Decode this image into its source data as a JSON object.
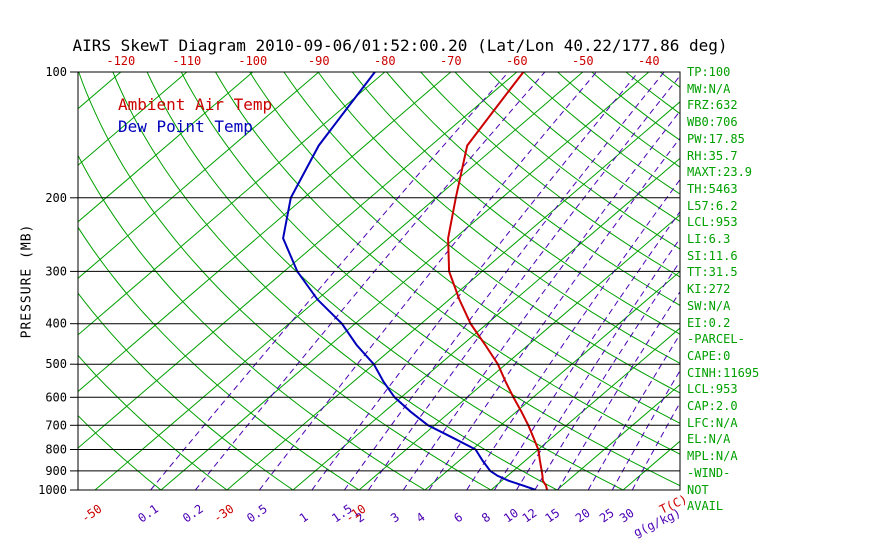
{
  "title": "AIRS SkewT Diagram 2010-09-06/01:52:00.20 (Lat/Lon 40.22/177.86 deg)",
  "legend": {
    "temp_label": "Ambient Air Temp",
    "dew_label": "Dew Point Temp"
  },
  "stats": {
    "items": [
      "TP:100",
      "MW:N/A",
      "FRZ:632",
      "WB0:706",
      "PW:17.85",
      "RH:35.7",
      "MAXT:23.9",
      "TH:5463",
      "L57:6.2",
      "LCL:953",
      "LI:6.3",
      "SI:11.6",
      "TT:31.5",
      "KI:272",
      "SW:N/A",
      "EI:0.2",
      "-PARCEL-",
      "CAPE:0",
      "CINH:11695",
      "LCL:953",
      "CAP:2.0",
      "LFC:N/A",
      "EL:N/A",
      "MPL:N/A",
      "-WIND-",
      "NOT",
      "AVAIL"
    ]
  },
  "colors": {
    "grid_green": "#00a000",
    "mixing_purple": "#4b00b4",
    "temp_red": "#cc0000",
    "dew_blue": "#0000bb",
    "axis_black": "#000000"
  },
  "chart_data": {
    "type": "line",
    "title": "AIRS SkewT Diagram 2010-09-06/01:52:00.20 (Lat/Lon 40.22/177.86 deg)",
    "y_axis": {
      "label": "PRESSURE (MB)",
      "scale": "log",
      "range_mb": [
        100,
        1000
      ],
      "ticks_mb": [
        100,
        200,
        300,
        400,
        500,
        600,
        700,
        800,
        900,
        1000
      ]
    },
    "x_axis": {
      "label": "T(C)",
      "top_tick_temps_c": [
        -120,
        -110,
        -100,
        -90,
        -80,
        -70,
        -60,
        -50,
        -40
      ],
      "bottom_tick_temps_c": [
        -50,
        -30,
        -10
      ]
    },
    "mixing_ratio": {
      "label": "g(g/kg)",
      "values_g_kg": [
        0.1,
        0.2,
        0.5,
        1,
        1.5,
        2,
        3,
        4,
        6,
        8,
        10,
        12,
        15,
        20,
        25,
        30
      ]
    },
    "isotherms_c": {
      "start": -130,
      "end": 40,
      "step": 10
    },
    "dry_adiabats_c": {
      "start": -40,
      "end": 200,
      "step": 10
    },
    "series": [
      {
        "name": "Ambient Air Temp",
        "color_key": "temp_red",
        "points_p_t": [
          [
            1000,
            18.5
          ],
          [
            975,
            17.5
          ],
          [
            950,
            16.2
          ],
          [
            925,
            15.3
          ],
          [
            900,
            14.3
          ],
          [
            850,
            12.2
          ],
          [
            800,
            10
          ],
          [
            750,
            7.2
          ],
          [
            700,
            4.2
          ],
          [
            650,
            0.8
          ],
          [
            600,
            -3
          ],
          [
            550,
            -7
          ],
          [
            500,
            -11.2
          ],
          [
            450,
            -16.5
          ],
          [
            400,
            -22.5
          ],
          [
            350,
            -28.5
          ],
          [
            300,
            -35
          ],
          [
            250,
            -41
          ],
          [
            200,
            -47
          ],
          [
            150,
            -54.5
          ],
          [
            120,
            -57
          ],
          [
            100,
            -59
          ]
        ]
      },
      {
        "name": "Dew Point Temp",
        "color_key": "dew_blue",
        "points_p_t": [
          [
            1000,
            16.8
          ],
          [
            975,
            14
          ],
          [
            950,
            11
          ],
          [
            925,
            8.5
          ],
          [
            900,
            6.5
          ],
          [
            850,
            3.5
          ],
          [
            800,
            0.5
          ],
          [
            750,
            -5
          ],
          [
            700,
            -11
          ],
          [
            650,
            -16
          ],
          [
            600,
            -21
          ],
          [
            550,
            -25.5
          ],
          [
            500,
            -30
          ],
          [
            450,
            -36
          ],
          [
            400,
            -42
          ],
          [
            350,
            -50
          ],
          [
            300,
            -58
          ],
          [
            250,
            -66
          ],
          [
            200,
            -72
          ],
          [
            150,
            -77
          ],
          [
            120,
            -79.5
          ],
          [
            100,
            -81.5
          ]
        ]
      }
    ]
  }
}
